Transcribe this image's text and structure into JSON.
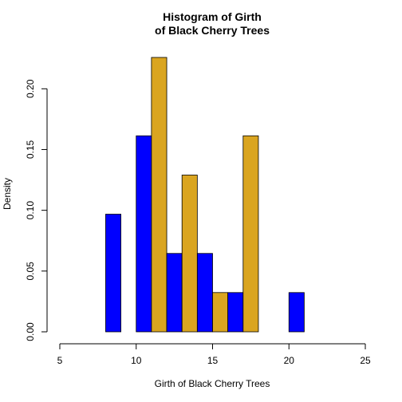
{
  "chart_data": {
    "type": "bar",
    "title": "Histogram of Girth",
    "subtitle": "of Black Cherry Trees",
    "xlabel": "Girth of Black Cherry Trees",
    "ylabel": "Density",
    "xlim": [
      5,
      25
    ],
    "ylim": [
      0,
      0.2258
    ],
    "x_ticks": [
      "5",
      "10",
      "15",
      "20",
      "25"
    ],
    "y_ticks": [
      "0.00",
      "0.05",
      "0.10",
      "0.15",
      "0.20"
    ],
    "grid": false,
    "bins": [
      {
        "start": 8,
        "end": 9,
        "density": 0.0968,
        "color": "#0000FF"
      },
      {
        "start": 9,
        "end": 10,
        "density": 0.0,
        "color": "#DAA520"
      },
      {
        "start": 10,
        "end": 11,
        "density": 0.1613,
        "color": "#0000FF"
      },
      {
        "start": 11,
        "end": 12,
        "density": 0.2258,
        "color": "#DAA520"
      },
      {
        "start": 12,
        "end": 13,
        "density": 0.0645,
        "color": "#0000FF"
      },
      {
        "start": 13,
        "end": 14,
        "density": 0.129,
        "color": "#DAA520"
      },
      {
        "start": 14,
        "end": 15,
        "density": 0.0645,
        "color": "#0000FF"
      },
      {
        "start": 15,
        "end": 16,
        "density": 0.0323,
        "color": "#DAA520"
      },
      {
        "start": 16,
        "end": 17,
        "density": 0.0323,
        "color": "#0000FF"
      },
      {
        "start": 17,
        "end": 18,
        "density": 0.1613,
        "color": "#DAA520"
      },
      {
        "start": 18,
        "end": 19,
        "density": 0.0,
        "color": "#0000FF"
      },
      {
        "start": 19,
        "end": 20,
        "density": 0.0,
        "color": "#DAA520"
      },
      {
        "start": 20,
        "end": 21,
        "density": 0.0323,
        "color": "#0000FF"
      }
    ]
  }
}
